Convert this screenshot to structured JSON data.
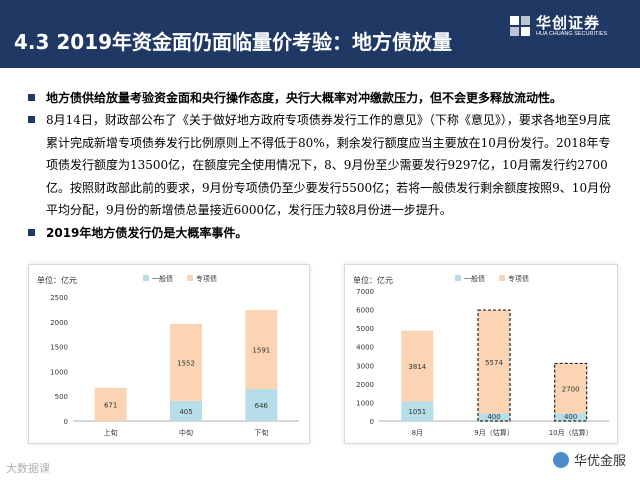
{
  "header": {
    "title": "4.3 2019年资金面仍面临量价考验：地方债放量",
    "logo_name": "华创证券",
    "logo_en": "HUA CHUANG SECURITIES"
  },
  "bullets": {
    "b1": "地方债供给放量考验资金面和央行操作态度，央行大概率对冲缴款压力，但不会更多释放流动性。",
    "b2": "8月14日，财政部公布了《关于做好地方政府专项债券发行工作的意见》（下称《意见》），要求各地至9月底累计完成新增专项债券发行比例原则上不得低于80%，剩余发行额度应当主要放在10月份发行。2018年专项债发行额度为13500亿，在额度完全使用情况下，8、9月份至少需要发行9297亿，10月需发行约2700亿。按照财政部此前的要求，9月份专项债仍至少要发行5500亿；若将一般债发行剩余额度按照9、10月份平均分配，9月份的新增债总量接近6000亿，发行压力较8月份进一步提升。",
    "b3": "2019年地方债发行仍是大概率事件。"
  },
  "colors": {
    "header_bg": "#1f3864",
    "general_bond": "#b7dde8",
    "special_bond": "#fbd4b4"
  },
  "chart_data": [
    {
      "type": "bar",
      "stacked": true,
      "unit_label": "单位：亿元",
      "categories": [
        "上旬",
        "中旬",
        "下旬"
      ],
      "series": [
        {
          "name": "一般债",
          "values": [
            0,
            405,
            646
          ]
        },
        {
          "name": "专项债",
          "values": [
            671,
            1552,
            1591
          ]
        }
      ],
      "ylim": [
        0,
        2500
      ],
      "yticks": [
        0,
        500,
        1000,
        1500,
        2000,
        2500
      ],
      "legend": "top-center"
    },
    {
      "type": "bar",
      "stacked": true,
      "unit_label": "单位：亿元",
      "categories": [
        "8月",
        "9月（估算）",
        "10月（估算）"
      ],
      "series": [
        {
          "name": "一般债",
          "values": [
            1051,
            400,
            400
          ]
        },
        {
          "name": "专项债",
          "values": [
            3814,
            5574,
            2700
          ]
        }
      ],
      "estimated": [
        false,
        true,
        true
      ],
      "ylim": [
        0,
        7000
      ],
      "yticks": [
        0,
        1000,
        2000,
        3000,
        4000,
        5000,
        6000,
        7000
      ],
      "legend": "top-center"
    }
  ],
  "footer": {
    "watermark": "大数据课",
    "brand": "华优金服"
  }
}
